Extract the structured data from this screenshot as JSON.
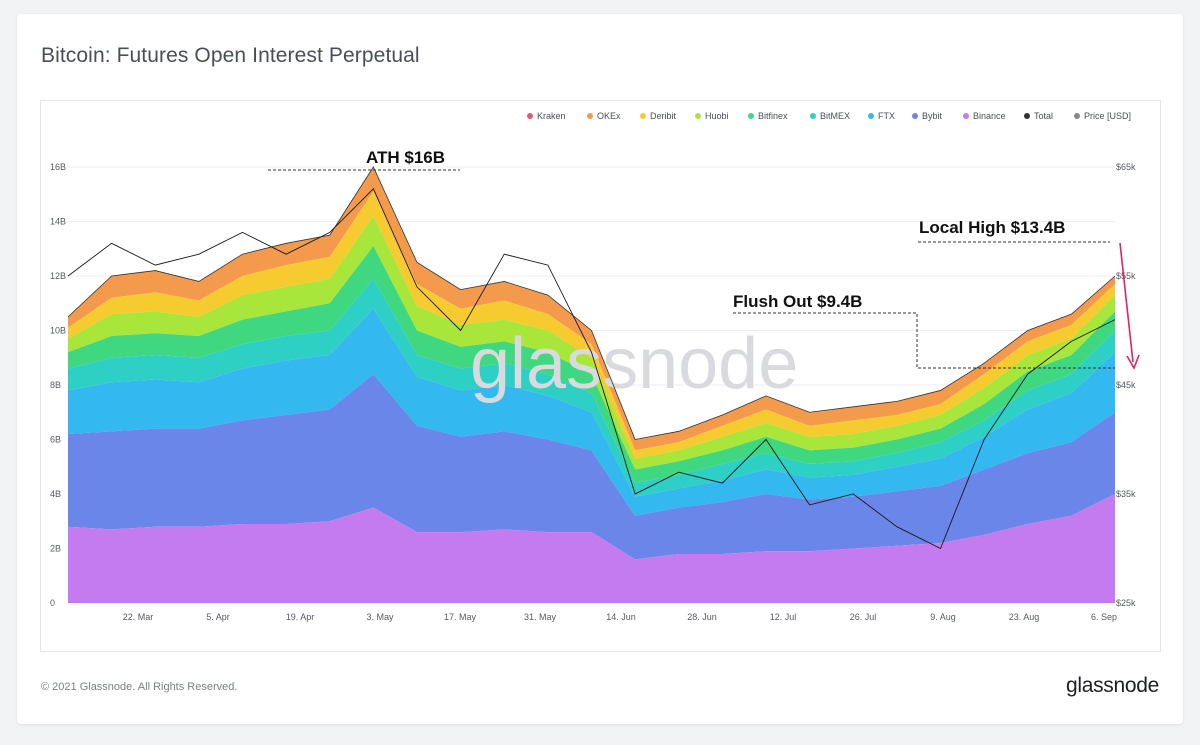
{
  "title": "Bitcoin: Futures Open Interest Perpetual",
  "footer": {
    "copyright": "© 2021 Glassnode. All Rights Reserved.",
    "logo": "glassnode"
  },
  "watermark": "glassnode",
  "chart_data": {
    "type": "area",
    "stacked": true,
    "title": "Bitcoin: Futures Open Interest Perpetual",
    "x_ticks": [
      "22. Mar",
      "5. Apr",
      "19. Apr",
      "3. May",
      "17. May",
      "31. May",
      "14. Jun",
      "28. Jun",
      "12. Jul",
      "26. Jul",
      "9. Aug",
      "23. Aug",
      "6. Sep"
    ],
    "y_left_ticks": [
      "0",
      "2B",
      "4B",
      "6B",
      "8B",
      "10B",
      "12B",
      "14B",
      "16B"
    ],
    "y_left_range": [
      0,
      16
    ],
    "y_right_ticks": [
      "$25k",
      "$35k",
      "$45k",
      "$55k",
      "$65k"
    ],
    "y_right_range": [
      25,
      65
    ],
    "legend_position": "top-right",
    "legend": [
      {
        "name": "Kraken",
        "color": "#e8566b"
      },
      {
        "name": "OKEx",
        "color": "#f39a4c"
      },
      {
        "name": "Deribit",
        "color": "#f5cb2f"
      },
      {
        "name": "Huobi",
        "color": "#a9e63c"
      },
      {
        "name": "Bitfinex",
        "color": "#3fd77f"
      },
      {
        "name": "BitMEX",
        "color": "#2ecfc4"
      },
      {
        "name": "FTX",
        "color": "#33b8ef"
      },
      {
        "name": "Bybit",
        "color": "#6a86e8"
      },
      {
        "name": "Binance",
        "color": "#c57bf0"
      },
      {
        "name": "Total",
        "color": "#333333"
      },
      {
        "name": "Price [USD]",
        "color": "#888888"
      }
    ],
    "x_index": [
      0,
      1,
      2,
      3,
      4,
      5,
      6,
      7,
      8,
      9,
      10,
      11,
      12,
      13,
      14,
      15,
      16,
      17,
      18,
      19,
      20,
      21,
      22,
      23,
      24
    ],
    "total": [
      10.5,
      12.0,
      12.2,
      11.8,
      12.8,
      13.2,
      13.5,
      16.0,
      12.5,
      11.5,
      11.8,
      11.3,
      10.0,
      6.0,
      6.3,
      6.9,
      7.6,
      7.0,
      7.2,
      7.4,
      7.8,
      8.8,
      10.0,
      10.6,
      12.0
    ],
    "exchanges_share": {
      "Binance": [
        2.8,
        2.7,
        2.8,
        2.8,
        2.9,
        2.9,
        3.0,
        3.5,
        2.6,
        2.6,
        2.7,
        2.6,
        2.6,
        1.6,
        1.8,
        1.8,
        1.9,
        1.9,
        2.0,
        2.1,
        2.2,
        2.5,
        2.9,
        3.2,
        4.0
      ],
      "Bybit": [
        3.4,
        3.6,
        3.6,
        3.6,
        3.8,
        4.0,
        4.1,
        4.9,
        3.9,
        3.5,
        3.6,
        3.4,
        3.0,
        1.6,
        1.7,
        1.9,
        2.1,
        1.9,
        1.9,
        2.0,
        2.1,
        2.4,
        2.6,
        2.7,
        3.0
      ],
      "FTX": [
        1.6,
        1.8,
        1.8,
        1.7,
        1.9,
        2.0,
        2.0,
        2.4,
        1.8,
        1.7,
        1.7,
        1.6,
        1.4,
        0.7,
        0.7,
        0.8,
        0.9,
        0.8,
        0.8,
        0.9,
        1.0,
        1.2,
        1.6,
        1.8,
        2.2
      ],
      "BitMEX": [
        0.8,
        0.9,
        0.9,
        0.9,
        0.9,
        0.9,
        0.9,
        1.1,
        0.8,
        0.8,
        0.8,
        0.8,
        0.7,
        0.5,
        0.5,
        0.6,
        0.6,
        0.5,
        0.5,
        0.5,
        0.6,
        0.6,
        0.7,
        0.7,
        0.8
      ],
      "Bitfinex": [
        0.6,
        0.8,
        0.8,
        0.8,
        0.9,
        0.9,
        1.0,
        1.2,
        0.9,
        0.8,
        0.8,
        0.8,
        0.7,
        0.5,
        0.5,
        0.5,
        0.6,
        0.5,
        0.5,
        0.5,
        0.5,
        0.6,
        0.7,
        0.7,
        0.7
      ],
      "Huobi": [
        0.5,
        0.8,
        0.8,
        0.7,
        0.9,
        0.9,
        0.9,
        1.1,
        0.9,
        0.8,
        0.8,
        0.8,
        0.6,
        0.4,
        0.4,
        0.5,
        0.5,
        0.5,
        0.5,
        0.5,
        0.5,
        0.6,
        0.6,
        0.6,
        0.6
      ],
      "Deribit": [
        0.4,
        0.6,
        0.7,
        0.6,
        0.7,
        0.8,
        0.8,
        0.9,
        0.8,
        0.6,
        0.7,
        0.6,
        0.5,
        0.3,
        0.3,
        0.4,
        0.5,
        0.4,
        0.5,
        0.4,
        0.4,
        0.5,
        0.5,
        0.5,
        0.4
      ],
      "OKEx": [
        0.4,
        0.8,
        0.8,
        0.7,
        0.8,
        0.8,
        0.8,
        0.9,
        0.8,
        0.7,
        0.7,
        0.7,
        0.5,
        0.4,
        0.4,
        0.4,
        0.5,
        0.5,
        0.5,
        0.5,
        0.5,
        0.4,
        0.4,
        0.4,
        0.3
      ]
    },
    "price_usd_k": [
      55,
      58,
      56,
      57,
      59,
      57,
      59,
      63,
      54,
      50,
      57,
      56,
      48,
      35,
      37,
      36,
      40,
      34,
      35,
      32,
      30,
      40,
      46,
      49,
      51
    ],
    "annotations": [
      {
        "label": "ATH  $16B",
        "value": 16
      },
      {
        "label": "Local High $13.4B",
        "value": 13.4
      },
      {
        "label": "Flush Out $9.4B",
        "value": 9.4
      }
    ]
  }
}
